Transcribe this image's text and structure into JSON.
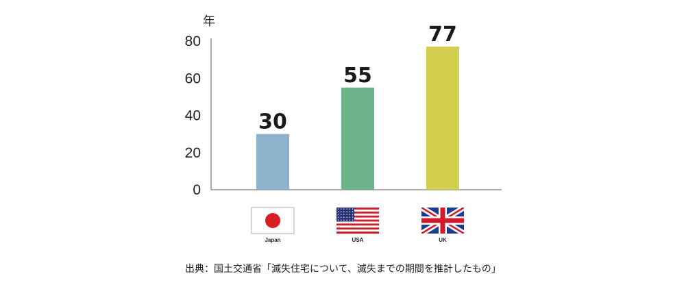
{
  "chart_data": {
    "type": "bar",
    "unit_label": "年",
    "categories": [
      "Japan",
      "USA",
      "UK"
    ],
    "values": [
      30,
      55,
      77
    ],
    "colors": [
      "#8eb1cc",
      "#6bb38a",
      "#d2cf4e"
    ],
    "ylim": [
      0,
      80
    ],
    "yticks": [
      0,
      20,
      40,
      60,
      80
    ],
    "grid": false,
    "category_icons": [
      "japan-flag-icon",
      "usa-flag-icon",
      "uk-flag-icon"
    ]
  },
  "source": "出典：国土交通省「滅失住宅について、滅失までの期間を推計したもの」"
}
